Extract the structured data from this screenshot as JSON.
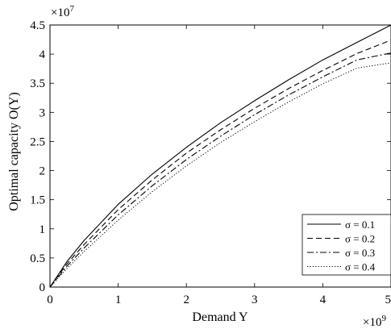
{
  "chart_data": {
    "type": "line",
    "title": "",
    "xlabel": "Demand Y",
    "ylabel": "Optimal capacity O(Y)",
    "x_exponent_label": "× 10^9",
    "y_exponent_label": "× 10^7",
    "xlim": [
      0,
      5
    ],
    "ylim": [
      0,
      4.5
    ],
    "x_ticks": [
      "0",
      "1",
      "2",
      "3",
      "4",
      "5"
    ],
    "y_ticks": [
      "0",
      "0.5",
      "1",
      "1.5",
      "2",
      "2.5",
      "3",
      "3.5",
      "4",
      "4.5"
    ],
    "grid": false,
    "legend_position": "bottom-right",
    "x": [
      0,
      0.25,
      0.5,
      1,
      1.5,
      2,
      2.5,
      3,
      3.5,
      4,
      4.5,
      5
    ],
    "series": [
      {
        "name": "σ = 0.1",
        "line_style": "solid",
        "values": [
          0,
          0.44,
          0.8,
          1.42,
          1.94,
          2.4,
          2.82,
          3.2,
          3.56,
          3.9,
          4.2,
          4.5
        ]
      },
      {
        "name": "σ = 0.2",
        "line_style": "dashed",
        "values": [
          0,
          0.4,
          0.73,
          1.33,
          1.84,
          2.3,
          2.7,
          3.07,
          3.41,
          3.72,
          4.01,
          4.24
        ]
      },
      {
        "name": "σ = 0.3",
        "line_style": "dash-dot",
        "values": [
          0,
          0.36,
          0.67,
          1.24,
          1.74,
          2.19,
          2.59,
          2.96,
          3.3,
          3.61,
          3.9,
          4.02
        ]
      },
      {
        "name": "σ = 0.4",
        "line_style": "dotted",
        "values": [
          0,
          0.32,
          0.61,
          1.15,
          1.64,
          2.08,
          2.48,
          2.84,
          3.18,
          3.49,
          3.76,
          3.85
        ]
      }
    ]
  }
}
